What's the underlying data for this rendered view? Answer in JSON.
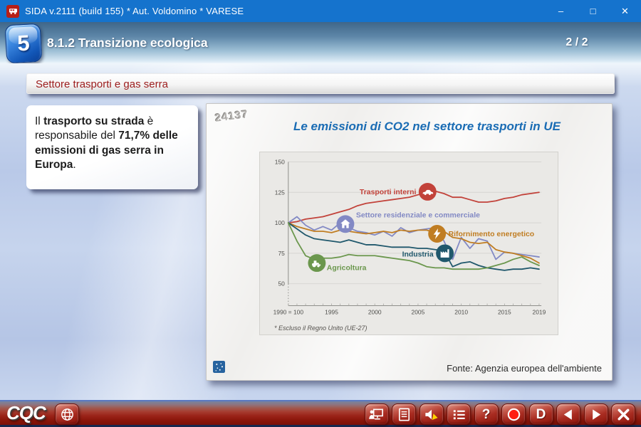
{
  "window": {
    "title": "SIDA v.2111 (build 155) * Aut. Voldomino * VARESE",
    "controls": {
      "minimize": "–",
      "maximize": "□",
      "close": "✕"
    }
  },
  "header": {
    "chapter_number": "5",
    "title": "8.1.2 Transizione ecologica",
    "page_indicator": "2 / 2"
  },
  "content": {
    "banner": "Settore trasporti e gas serra",
    "callout_segments": [
      {
        "text": "Il ",
        "bold": false
      },
      {
        "text": "trasporto su strada",
        "bold": true
      },
      {
        "text": " è responsabile del ",
        "bold": false
      },
      {
        "text": "71,7%",
        "bold": true
      },
      {
        "text": " ",
        "bold": false
      },
      {
        "text": "delle emissioni di gas serra in Europa",
        "bold": true
      },
      {
        "text": ".",
        "bold": false
      }
    ],
    "slide": {
      "code": "24137",
      "source": "Fonte: Agenzia europea dell'ambiente"
    }
  },
  "chart_data": {
    "type": "line",
    "title": "Le emissioni di CO2 nel settore trasporti in UE",
    "footnote": "* Escluso il Regno Unito (UE-27)",
    "index_note": "1990 = 100",
    "x_start": 1990,
    "x_end": 2019,
    "x_ticks": [
      1990,
      1995,
      2000,
      2005,
      2010,
      2015,
      2019
    ],
    "x_tick_labels": [
      "1990 = 100",
      "1995",
      "2000",
      "2005",
      "2010",
      "2015",
      "2019"
    ],
    "y_ticks": [
      50,
      75,
      100,
      125,
      150
    ],
    "ylim": [
      32,
      155
    ],
    "grid": true,
    "legend_position": "inline-markers",
    "series": [
      {
        "name": "Trasporti interni",
        "color": "#c2423a",
        "icon": "car",
        "marker": {
          "year": 2006.1,
          "value": 125.5,
          "label_anchor": "end",
          "label_dx": -16,
          "label_dy": 3.5
        },
        "values": [
          100,
          101,
          103,
          104,
          105,
          107,
          109,
          111,
          114,
          116,
          117,
          118,
          119,
          120,
          121,
          123,
          125,
          126,
          124,
          121,
          121,
          119,
          117,
          117,
          118,
          120,
          121,
          123,
          124,
          125
        ]
      },
      {
        "name": "Settore residenziale e commerciale",
        "color": "#8289c4",
        "icon": "house",
        "marker": {
          "year": 1996.6,
          "value": 99,
          "label_anchor": "start",
          "label_dx": 15,
          "label_dy": -9.5
        },
        "values": [
          100,
          105,
          98,
          94,
          97,
          94,
          100,
          96,
          93,
          92,
          90,
          93,
          89,
          96,
          92,
          94,
          95,
          96,
          85,
          70,
          88,
          79,
          87,
          85,
          70,
          76,
          75,
          74,
          73,
          72
        ]
      },
      {
        "name": "Rifornimento energetico",
        "color": "#c07d22",
        "icon": "lightning",
        "marker": {
          "year": 2007.2,
          "value": 91,
          "label_anchor": "start",
          "label_dx": 16,
          "label_dy": 3.5
        },
        "values": [
          100,
          97,
          95,
          93,
          93,
          92,
          94,
          93,
          92,
          91,
          92,
          93,
          92,
          94,
          93,
          94,
          94,
          92,
          93,
          88,
          87,
          84,
          83,
          84,
          78,
          76,
          75,
          73,
          71,
          67
        ]
      },
      {
        "name": "Industria",
        "color": "#20586c",
        "icon": "factory",
        "marker": {
          "year": 2008.1,
          "value": 75,
          "label_anchor": "end",
          "label_dx": -16,
          "label_dy": 4.5
        },
        "values": [
          100,
          95,
          90,
          87,
          86,
          85,
          84,
          86,
          84,
          82,
          82,
          81,
          80,
          80,
          80,
          79,
          79,
          78,
          77,
          64,
          67,
          68,
          65,
          63,
          62,
          61,
          62,
          62,
          63,
          62
        ]
      },
      {
        "name": "Agricoltura",
        "color": "#6b974d",
        "icon": "tractor",
        "marker": {
          "year": 1993.3,
          "value": 67,
          "label_anchor": "start",
          "label_dx": 14,
          "label_dy": 10
        },
        "values": [
          100,
          85,
          73,
          70,
          71,
          71,
          72,
          74,
          73,
          73,
          73,
          72,
          71,
          70,
          69,
          67,
          64,
          63,
          63,
          62,
          62,
          62,
          62,
          63,
          65,
          67,
          70,
          72,
          68,
          65
        ]
      }
    ]
  },
  "toolbar": {
    "logo_text": "CQC",
    "help_label": "?",
    "dictionary_label": "D",
    "button_names": [
      "globe",
      "presenter",
      "document",
      "audio",
      "index",
      "help",
      "record",
      "dictionary",
      "previous",
      "next",
      "close"
    ],
    "accent_color": "#a62c1f"
  }
}
